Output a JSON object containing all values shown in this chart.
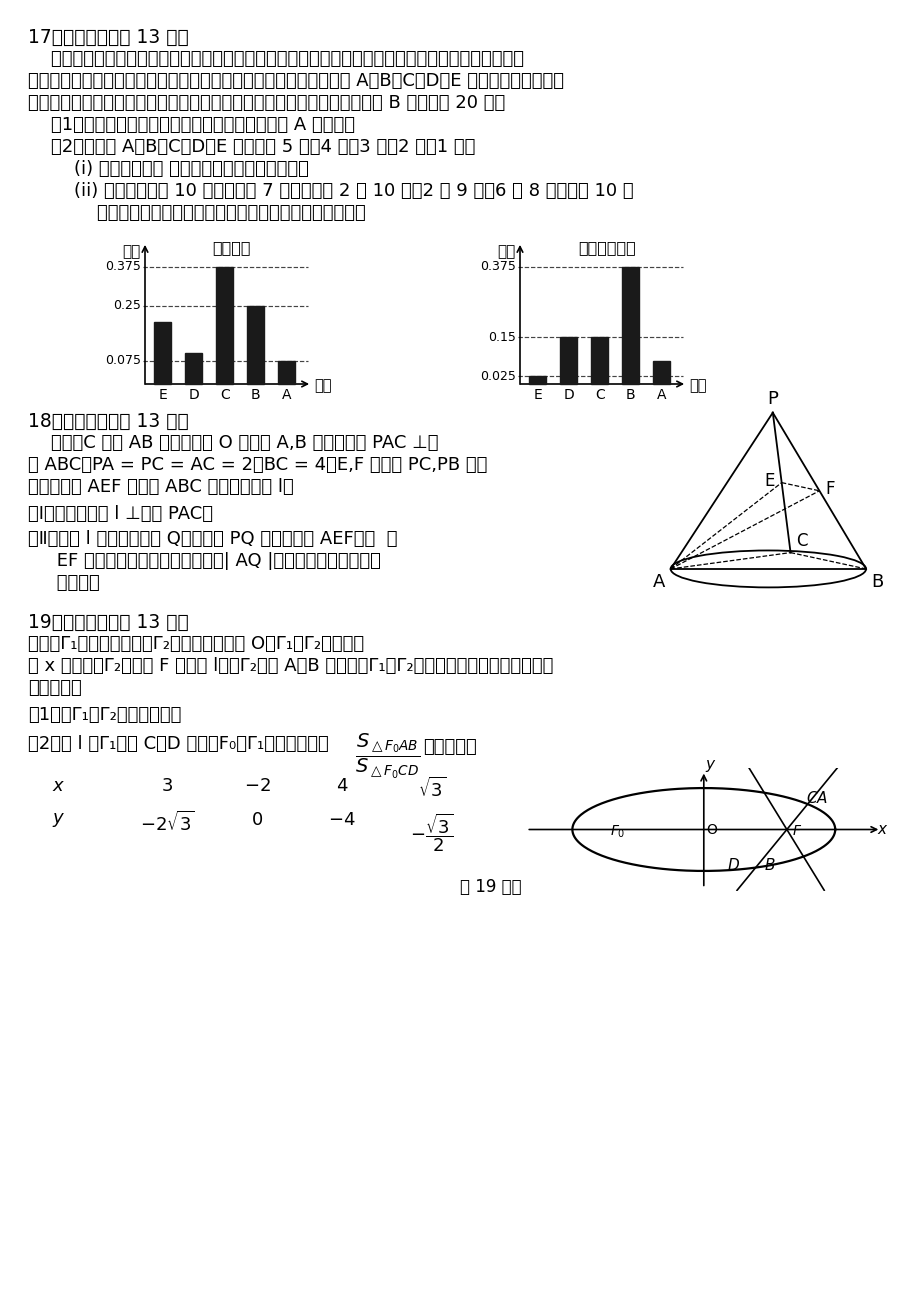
{
  "background": "#ffffff",
  "q17_header": "17．（本小题满分 13 分）",
  "q17_para1": "    某校政教处为检查各班落实学校「学生素养五十条」的规定情况，从各班抄取了一批学生进行测试，",
  "q17_para2": "全部学生参加了「理论部分」和「模拟现场」两项测试，成绩均分为 A，B，C，D，E 五个等级．某考场考",
  "q17_para3": "生两项测试成绩的数据统计如下图所示，其中「理论部分」科目测试成绩为 B 的考生有 20 人．",
  "q17_q1": "    （1）求该考场考生中「模拟现场」科目中成绩为 A 的人数；",
  "q17_q2": "    （2）若等级 A，B，C，D，E 分别对应 5 分，4 分，3 分，2 分，1 分．",
  "q17_q2i": "        (i) 求该考场考生 「理论部分」科目的平均分；",
  "q17_q2ii": "        (ii) 若该考场共有 10 人得分大于 7 分，其中有 2 人 10 分，2 人 9 分，6 人 8 分．从这 10 人",
  "q17_q2ii2": "            中随机抄取两人，求两人成绩之和的分布列和数学期望．",
  "chart1_title": "理论测试",
  "chart1_ylabel": "频率",
  "chart1_categories": [
    "E",
    "D",
    "C",
    "B",
    "A"
  ],
  "chart1_values": [
    0.2,
    0.1,
    0.375,
    0.25,
    0.075
  ],
  "chart1_dashed": [
    0.375,
    0.25,
    0.075
  ],
  "chart2_title": "模拟现场测试",
  "chart2_ylabel": "频率",
  "chart2_categories": [
    "E",
    "D",
    "C",
    "B",
    "A"
  ],
  "chart2_values": [
    0.025,
    0.15,
    0.15,
    0.375,
    0.075
  ],
  "chart2_dashed": [
    0.375,
    0.15,
    0.025
  ],
  "q18_header": "18．（本小题满分 13 分）",
  "q18_para1": "    如图，C 是以 AB 为直径的圆 O 上异于 A,B 的点，平面 PAC ⊥平",
  "q18_para2": "面 ABC，PA = PC = AC = 2，BC = 4，E,F 分别是 PC,PB 的中",
  "q18_para3": "点，记平面 AEF 与平面 ABC 的交线为直线 l．",
  "q18_q1": "（Ⅰ）求证：直线 l ⊥平面 PAC；",
  "q18_q2": "（Ⅱ）直线 l 上是否存在点 Q，使直线 PQ 分别与平面 AEF、直  线",
  "q18_q2b": "     EF 所成的角互余？若存在，求出| AQ |的值；若不存在，请说",
  "q18_q2c": "     明理由．",
  "q19_header": "19．（本小题满分 13 分）",
  "q19_para1": "设湠圆Γ₁的中心和抛物线Γ₂的顶点均为原点 O，Γ₁、Γ₂的焦点均",
  "q19_para2": "在 x 轴上，过Γ₂的焦点 F 作直线 l，与Γ₂交于 A、B 两点，在Γ₁、Γ₂上各取两个点，将其坐标记录",
  "q19_para3": "于下表中：",
  "q19_q1": "（1）求Γ₁，Γ₂的标准方程：",
  "q19_q2a": "（2）若 l 与Γ₁交于 C、D 两点，F₀为Γ₁的左焦点，求",
  "footer": "第 19 题图",
  "bar_color": "#1a1a1a",
  "text_color": "#000000"
}
